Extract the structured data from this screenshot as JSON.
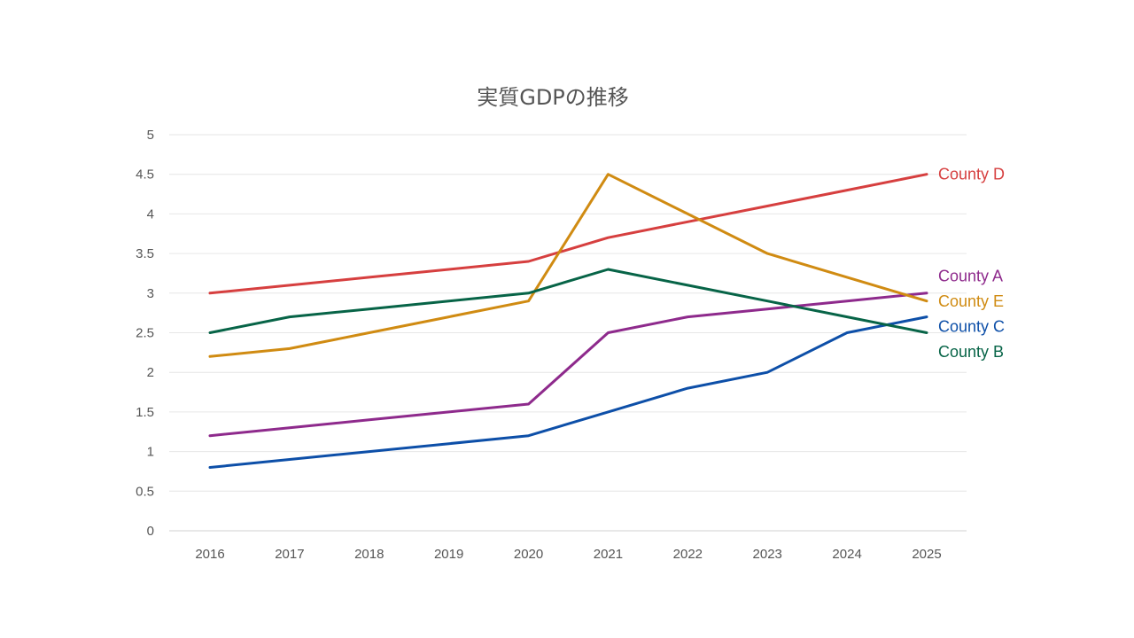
{
  "chart_data": {
    "type": "line",
    "title": "実質GDPの推移",
    "xlabel": "",
    "ylabel": "",
    "x": [
      "2016",
      "2017",
      "2018",
      "2019",
      "2020",
      "2021",
      "2022",
      "2023",
      "2024",
      "2025"
    ],
    "ylim": [
      0,
      5
    ],
    "yticks": [
      "0",
      "0.5",
      "1",
      "1.5",
      "2",
      "2.5",
      "3",
      "3.5",
      "4",
      "4.5",
      "5"
    ],
    "grid": true,
    "legend": "line-end labels",
    "series": [
      {
        "name": "County D",
        "color": "#d63f3f",
        "values": [
          3.0,
          3.1,
          3.2,
          3.3,
          3.4,
          3.7,
          3.9,
          4.1,
          4.3,
          4.5
        ]
      },
      {
        "name": "County A",
        "color": "#8e2a8c",
        "values": [
          1.2,
          1.3,
          1.4,
          1.5,
          1.6,
          2.5,
          2.7,
          2.8,
          2.9,
          3.0
        ]
      },
      {
        "name": "County E",
        "color": "#d08b12",
        "values": [
          2.2,
          2.3,
          2.5,
          2.7,
          2.9,
          4.5,
          4.0,
          3.5,
          3.2,
          2.9
        ]
      },
      {
        "name": "County C",
        "color": "#0d4fa8",
        "values": [
          0.8,
          0.9,
          1.0,
          1.1,
          1.2,
          1.5,
          1.8,
          2.0,
          2.5,
          2.7
        ]
      },
      {
        "name": "County B",
        "color": "#076447",
        "values": [
          2.5,
          2.7,
          2.8,
          2.9,
          3.0,
          3.3,
          3.1,
          2.9,
          2.7,
          2.5
        ]
      }
    ]
  }
}
